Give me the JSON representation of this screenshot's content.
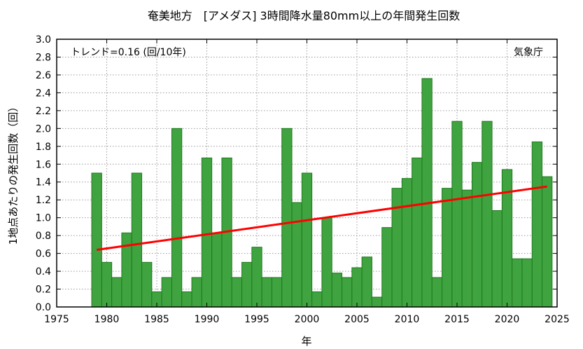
{
  "chart_data": {
    "type": "bar",
    "title": "奄美地方　[アメダス] 3時間降水量80mm以上の年間発生回数",
    "xlabel": "年",
    "ylabel": "1地点あたりの発生回数（回）",
    "trend_label": "トレンド=0.16 (回/10年)",
    "source": "気象庁",
    "xlim": [
      1975,
      2025
    ],
    "ylim": [
      0.0,
      3.0
    ],
    "xticks": [
      "1975",
      "1980",
      "1985",
      "1990",
      "1995",
      "2000",
      "2005",
      "2010",
      "2015",
      "2020",
      "2025"
    ],
    "yticks": [
      "0.0",
      "0.2",
      "0.4",
      "0.6",
      "0.8",
      "1.0",
      "1.2",
      "1.4",
      "1.6",
      "1.8",
      "2.0",
      "2.2",
      "2.4",
      "2.6",
      "2.8",
      "3.0"
    ],
    "grid": true,
    "bar_color": "#3fa33f",
    "bar_edge_color": "#1e7a1e",
    "trend_color": "#ff0000",
    "x": [
      1979,
      1980,
      1981,
      1982,
      1983,
      1984,
      1985,
      1986,
      1987,
      1988,
      1989,
      1990,
      1991,
      1992,
      1993,
      1994,
      1995,
      1996,
      1997,
      1998,
      1999,
      2000,
      2001,
      2002,
      2003,
      2004,
      2005,
      2006,
      2007,
      2008,
      2009,
      2010,
      2011,
      2012,
      2013,
      2014,
      2015,
      2016,
      2017,
      2018,
      2019,
      2020,
      2021,
      2022,
      2023,
      2024
    ],
    "values": [
      1.5,
      0.5,
      0.33,
      0.83,
      1.5,
      0.5,
      0.17,
      0.33,
      2.0,
      0.17,
      0.33,
      1.67,
      0.83,
      1.67,
      0.33,
      0.5,
      0.67,
      0.33,
      0.33,
      2.0,
      1.17,
      1.5,
      0.17,
      1.0,
      0.38,
      0.33,
      0.44,
      0.56,
      0.11,
      0.89,
      1.33,
      1.44,
      1.67,
      2.56,
      0.33,
      1.33,
      2.08,
      1.31,
      1.62,
      2.08,
      1.08,
      1.54,
      0.54,
      0.54,
      1.85,
      1.46
    ],
    "trend": {
      "x": [
        1979,
        2024
      ],
      "y": [
        0.64,
        1.35
      ]
    }
  }
}
